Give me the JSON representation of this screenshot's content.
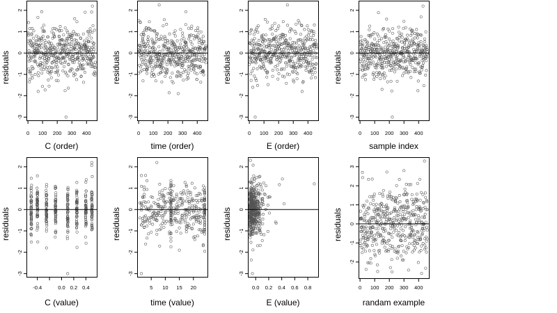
{
  "figure": {
    "seed": 7,
    "point_color": "#555555",
    "frame_color": "#000000",
    "reference_line_color": "#000000"
  },
  "chart_data": [
    {
      "type": "scatter",
      "id": "c-order",
      "xlabel": "C (order)",
      "ylabel": "residuals",
      "xlim": [
        -10,
        470
      ],
      "ylim": [
        -3.15,
        2.45
      ],
      "xticks": [
        0,
        100,
        200,
        300,
        400
      ],
      "xtick_labels": [
        "0",
        "100",
        "200",
        "300",
        "400"
      ],
      "yticks": [
        -3,
        -2,
        -1,
        0,
        1,
        2
      ],
      "ytick_labels": [
        "-3",
        "-2",
        "-1",
        "0",
        "1",
        "2"
      ],
      "reference_line": 0,
      "points": {
        "kind": "index",
        "n": 460,
        "x_from": 0,
        "x_to": 460,
        "mean": 0,
        "sd": 0.62,
        "outliers": [
          [
            440,
            2.2
          ],
          [
            260,
            -3.0
          ],
          [
            10,
            -1.35
          ],
          [
            70,
            -1.8
          ]
        ]
      }
    },
    {
      "type": "scatter",
      "id": "time-order",
      "xlabel": "time (order)",
      "ylabel": "residuals",
      "xlim": [
        -10,
        470
      ],
      "ylim": [
        -3.15,
        2.45
      ],
      "xticks": [
        0,
        100,
        200,
        300,
        400
      ],
      "xtick_labels": [
        "0",
        "100",
        "200",
        "300",
        "400"
      ],
      "yticks": [
        -3,
        -2,
        -1,
        0,
        1,
        2
      ],
      "ytick_labels": [
        "-3",
        "-2",
        "-1",
        "0",
        "1",
        "2"
      ],
      "reference_line": 0,
      "points": {
        "kind": "index",
        "n": 460,
        "x_from": 0,
        "x_to": 460,
        "mean": 0,
        "sd": 0.62,
        "outliers": [
          [
            140,
            2.25
          ],
          [
            270,
            -1.9
          ],
          [
            30,
            -1.3
          ]
        ]
      }
    },
    {
      "type": "scatter",
      "id": "e-order",
      "xlabel": "E (order)",
      "ylabel": "residuals",
      "xlim": [
        -10,
        470
      ],
      "ylim": [
        -3.15,
        2.45
      ],
      "xticks": [
        0,
        100,
        200,
        300,
        400
      ],
      "xtick_labels": [
        "0",
        "100",
        "200",
        "300",
        "400"
      ],
      "yticks": [
        -3,
        -2,
        -1,
        0,
        1,
        2
      ],
      "ytick_labels": [
        "-3",
        "-2",
        "-1",
        "0",
        "1",
        "2"
      ],
      "reference_line": 0,
      "points": {
        "kind": "index",
        "n": 460,
        "x_from": 0,
        "x_to": 460,
        "mean": 0,
        "sd": 0.62,
        "outliers": [
          [
            260,
            2.25
          ],
          [
            40,
            -3.0
          ],
          [
            360,
            -1.8
          ]
        ]
      }
    },
    {
      "type": "scatter",
      "id": "sample-index",
      "xlabel": "sample index",
      "ylabel": "residuals",
      "xlim": [
        -10,
        470
      ],
      "ylim": [
        -3.15,
        2.45
      ],
      "xticks": [
        0,
        100,
        200,
        300,
        400
      ],
      "xtick_labels": [
        "0",
        "100",
        "200",
        "300",
        "400"
      ],
      "yticks": [
        -3,
        -2,
        -1,
        0,
        1,
        2
      ],
      "ytick_labels": [
        "-3",
        "-2",
        "-1",
        "0",
        "1",
        "2"
      ],
      "reference_line": 0,
      "points": {
        "kind": "index",
        "n": 460,
        "x_from": 0,
        "x_to": 460,
        "mean": 0,
        "sd": 0.62,
        "outliers": [
          [
            430,
            2.2
          ],
          [
            220,
            -3.0
          ],
          [
            150,
            -1.7
          ]
        ]
      }
    },
    {
      "type": "scatter",
      "id": "c-value",
      "xlabel": "C (value)",
      "ylabel": "residuals",
      "xlim": [
        -0.58,
        0.58
      ],
      "ylim": [
        -3.15,
        2.45
      ],
      "xticks": [
        -0.4,
        -0.2,
        0.0,
        0.2,
        0.4
      ],
      "xtick_labels": [
        "-0.4",
        "",
        "0.0",
        "0.2",
        "0.4"
      ],
      "yticks": [
        -3,
        -2,
        -1,
        0,
        1,
        2
      ],
      "ytick_labels": [
        "-3",
        "-2",
        "-1",
        "0",
        "1",
        "2"
      ],
      "reference_line": 0,
      "points": {
        "kind": "discrete",
        "levels": [
          -0.5,
          -0.4,
          -0.25,
          -0.1,
          0.1,
          0.25,
          0.4,
          0.5
        ],
        "per_level": 50,
        "mean": 0,
        "sd": 0.62,
        "outliers": [
          [
            0.5,
            2.2
          ],
          [
            0.1,
            -3.0
          ],
          [
            -0.25,
            -1.8
          ]
        ]
      }
    },
    {
      "type": "scatter",
      "id": "time-value",
      "xlabel": "time (value)",
      "ylabel": "residuals",
      "xlim": [
        0,
        25
      ],
      "ylim": [
        -3.15,
        2.45
      ],
      "xticks": [
        5,
        10,
        15,
        20
      ],
      "xtick_labels": [
        "5",
        "10",
        "15",
        "20"
      ],
      "yticks": [
        -3,
        -2,
        -1,
        0,
        1,
        2
      ],
      "ytick_labels": [
        "-3",
        "-2",
        "-1",
        "0",
        "1",
        "2"
      ],
      "reference_line": 0,
      "points": {
        "kind": "mixed",
        "uniform_n": 300,
        "x_from": 1,
        "x_to": 24,
        "levels": [
          12,
          24
        ],
        "per_level": 40,
        "mean": 0,
        "sd": 0.62,
        "outliers": [
          [
            7,
            2.2
          ],
          [
            1.5,
            -3.0
          ],
          [
            15,
            -1.9
          ]
        ]
      }
    },
    {
      "type": "scatter",
      "id": "e-value",
      "xlabel": "E (value)",
      "ylabel": "residuals",
      "xlim": [
        -0.12,
        0.96
      ],
      "ylim": [
        -3.15,
        2.45
      ],
      "xticks": [
        0.0,
        0.2,
        0.4,
        0.6,
        0.8
      ],
      "xtick_labels": [
        "0.0",
        "0.2",
        "0.4",
        "0.6",
        "0.8"
      ],
      "yticks": [
        -3,
        -2,
        -1,
        0,
        1,
        2
      ],
      "ytick_labels": [
        "-3",
        "-2",
        "-1",
        "0",
        "1",
        "2"
      ],
      "reference_line": 0,
      "points": {
        "kind": "skewed",
        "n": 460,
        "x_min": -0.09,
        "x_max": 0.92,
        "skew_rate": 14,
        "mean": 0,
        "sd": 0.62,
        "outliers": [
          [
            -0.08,
            2.3
          ],
          [
            -0.05,
            -3.0
          ],
          [
            0.9,
            1.2
          ]
        ]
      }
    },
    {
      "type": "scatter",
      "id": "random-example",
      "xlabel": "randam example",
      "ylabel": "residuals",
      "xlim": [
        -10,
        470
      ],
      "ylim": [
        -2.85,
        3.5
      ],
      "xticks": [
        0,
        100,
        200,
        300,
        400
      ],
      "xtick_labels": [
        "0",
        "100",
        "200",
        "300",
        "400"
      ],
      "yticks": [
        -2,
        -1,
        0,
        1,
        2,
        3
      ],
      "ytick_labels": [
        "-2",
        "-1",
        "0",
        "1",
        "2",
        "3"
      ],
      "reference_line": 0,
      "points": {
        "kind": "index",
        "n": 460,
        "x_from": 0,
        "x_to": 460,
        "mean": 0.1,
        "sd": 0.95,
        "outliers": [
          [
            440,
            3.3
          ],
          [
            300,
            2.8
          ],
          [
            420,
            -2.6
          ],
          [
            120,
            -2.5
          ]
        ]
      }
    }
  ]
}
